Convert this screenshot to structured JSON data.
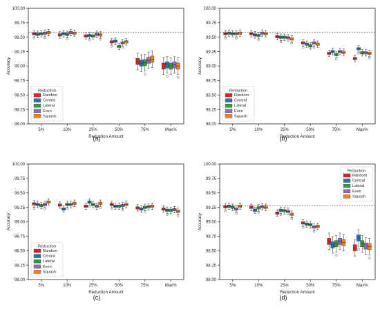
{
  "colors": {
    "Random": "#d62728",
    "Central": "#1f77b4",
    "Lateral": "#2ca02c",
    "Even": "#9467bd",
    "Squash": "#ff7f0e",
    "reference_line": "#555555"
  },
  "chart_data": [
    {
      "type": "box",
      "panel_label": "(a)",
      "xlabel": "Reduction Amount",
      "ylabel": "Accuracy",
      "ylim": [
        98.0,
        100.0
      ],
      "yticks": [
        "98.00",
        "98.25",
        "98.50",
        "98.75",
        "99.00",
        "99.25",
        "99.50",
        "99.75",
        "100.00"
      ],
      "categories": [
        "5%",
        "10%",
        "25%",
        "50%",
        "75%",
        "Max%"
      ],
      "reference_line": 99.58,
      "legend": {
        "title": "Reduction",
        "position": "bottom-left"
      },
      "series": [
        {
          "name": "Random",
          "medians": [
            99.56,
            99.54,
            99.52,
            99.42,
            99.08,
            99.0
          ]
        },
        {
          "name": "Central",
          "medians": [
            99.55,
            99.56,
            99.53,
            99.43,
            99.05,
            99.02
          ]
        },
        {
          "name": "Lateral",
          "medians": [
            99.56,
            99.55,
            99.52,
            99.34,
            99.06,
            99.0
          ]
        },
        {
          "name": "Even",
          "medians": [
            99.57,
            99.58,
            99.55,
            99.4,
            99.1,
            99.02
          ]
        },
        {
          "name": "Squash",
          "medians": [
            99.58,
            99.57,
            99.54,
            99.42,
            99.12,
            99.0
          ]
        }
      ]
    },
    {
      "type": "box",
      "panel_label": "(b)",
      "xlabel": "Reduction Amount",
      "ylabel": "Accuracy",
      "ylim": [
        98.0,
        100.0
      ],
      "yticks": [
        "98.00",
        "98.25",
        "98.50",
        "98.75",
        "99.00",
        "99.25",
        "99.50",
        "99.75",
        "100.00"
      ],
      "categories": [
        "5%",
        "10%",
        "25%",
        "50%",
        "75%",
        "Max%"
      ],
      "reference_line": 99.58,
      "legend": {
        "title": "Reduction",
        "position": "bottom-left"
      },
      "series": [
        {
          "name": "Random",
          "medians": [
            99.56,
            99.56,
            99.51,
            99.4,
            99.22,
            99.13
          ]
        },
        {
          "name": "Central",
          "medians": [
            99.57,
            99.54,
            99.5,
            99.38,
            99.25,
            99.3
          ]
        },
        {
          "name": "Lateral",
          "medians": [
            99.56,
            99.53,
            99.5,
            99.35,
            99.2,
            99.23
          ]
        },
        {
          "name": "Even",
          "medians": [
            99.56,
            99.57,
            99.49,
            99.4,
            99.25,
            99.23
          ]
        },
        {
          "name": "Squash",
          "medians": [
            99.57,
            99.56,
            99.47,
            99.38,
            99.24,
            99.22
          ]
        }
      ]
    },
    {
      "type": "box",
      "panel_label": "(c)",
      "xlabel": "Reduction Amount",
      "ylabel": "Accuracy",
      "ylim": [
        98.0,
        100.0
      ],
      "yticks": [
        "98.00",
        "98.25",
        "98.50",
        "98.75",
        "99.00",
        "99.25",
        "99.50",
        "99.75",
        "100.00"
      ],
      "categories": [
        "5%",
        "10%",
        "25%",
        "50%",
        "75%",
        "Max%"
      ],
      "reference_line": null,
      "legend": {
        "title": "Reduction",
        "position": "bottom-left"
      },
      "series": [
        {
          "name": "Random",
          "medians": [
            99.31,
            99.29,
            99.27,
            99.3,
            99.24,
            99.22
          ]
        },
        {
          "name": "Central",
          "medians": [
            99.3,
            99.22,
            99.34,
            99.27,
            99.22,
            99.2
          ]
        },
        {
          "name": "Lateral",
          "medians": [
            99.28,
            99.3,
            99.3,
            99.27,
            99.25,
            99.2
          ]
        },
        {
          "name": "Even",
          "medians": [
            99.3,
            99.3,
            99.27,
            99.28,
            99.26,
            99.21
          ]
        },
        {
          "name": "Squash",
          "medians": [
            99.34,
            99.32,
            99.32,
            99.3,
            99.27,
            99.18
          ]
        }
      ]
    },
    {
      "type": "box",
      "panel_label": "(d)",
      "xlabel": "Reduction Amount",
      "ylabel": "Accuracy",
      "ylim": [
        98.0,
        100.0
      ],
      "yticks": [
        "98.00",
        "98.25",
        "98.50",
        "98.75",
        "99.00",
        "99.25",
        "99.50",
        "99.75",
        "100.00"
      ],
      "categories": [
        "5%",
        "10%",
        "25%",
        "50%",
        "75%",
        "Max%"
      ],
      "reference_line": 99.28,
      "legend": {
        "title": "Reduction",
        "position": "top-right"
      },
      "series": [
        {
          "name": "Random",
          "medians": [
            99.26,
            99.25,
            99.15,
            98.98,
            98.66,
            98.55
          ]
        },
        {
          "name": "Central",
          "medians": [
            99.27,
            99.2,
            99.2,
            98.96,
            98.6,
            98.72
          ]
        },
        {
          "name": "Lateral",
          "medians": [
            99.25,
            99.24,
            99.19,
            98.95,
            98.62,
            98.62
          ]
        },
        {
          "name": "Even",
          "medians": [
            99.22,
            99.26,
            99.18,
            98.91,
            98.66,
            98.58
          ]
        },
        {
          "name": "Squash",
          "medians": [
            99.27,
            99.25,
            99.13,
            98.92,
            98.64,
            98.57
          ]
        }
      ]
    }
  ]
}
